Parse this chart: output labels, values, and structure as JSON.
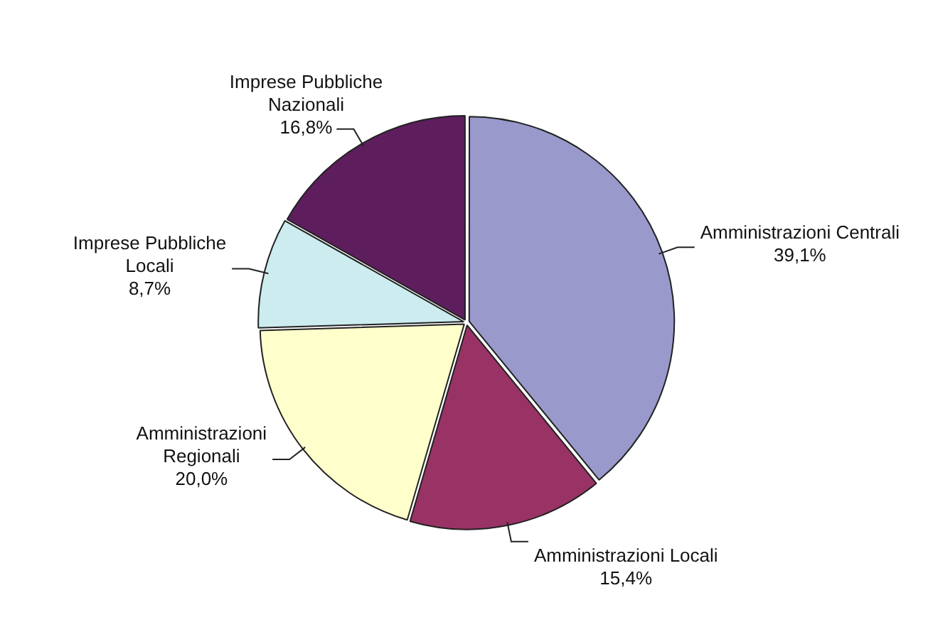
{
  "chart_data": {
    "type": "pie",
    "categories": [
      "Amministrazioni Centrali",
      "Amministrazioni Locali",
      "Amministrazioni Regionali",
      "Imprese Pubbliche Locali",
      "Imprese Pubbliche Nazionali"
    ],
    "values": [
      39.1,
      15.4,
      20.0,
      8.7,
      16.8
    ],
    "colors": [
      "#9999cc",
      "#993366",
      "#ffffcc",
      "#ccecf0",
      "#5e1e5e"
    ],
    "value_labels": [
      "39,1%",
      "15,4%",
      "20,0%",
      "8,7%",
      "16,8%"
    ],
    "legend": false
  }
}
